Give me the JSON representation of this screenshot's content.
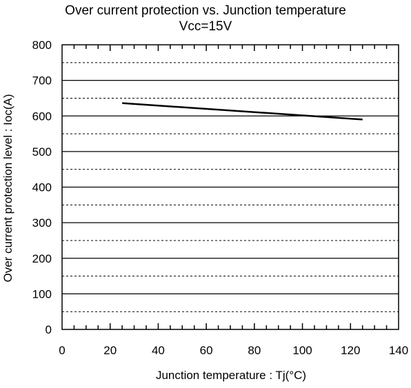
{
  "chart_data": {
    "type": "line",
    "title": "Over current protection vs. Junction temperature",
    "subtitle": "Vcc=15V",
    "xlabel": "Junction temperature : Tj(°C)",
    "ylabel": "Over current protection level : Ioc(A)",
    "xlim": [
      0,
      140
    ],
    "ylim": [
      0,
      800
    ],
    "xticks": [
      0,
      20,
      40,
      60,
      80,
      100,
      120,
      140
    ],
    "yticks": [
      0,
      100,
      200,
      300,
      400,
      500,
      600,
      700,
      800
    ],
    "grid": true,
    "series": [
      {
        "x": [
          25,
          125
        ],
        "y": [
          636,
          590
        ],
        "color": "#000000"
      }
    ]
  }
}
